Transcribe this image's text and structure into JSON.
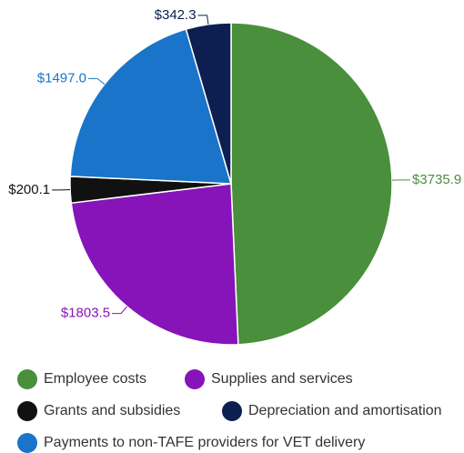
{
  "chart_data": {
    "type": "pie",
    "categories": [
      "Employee costs",
      "Supplies and services",
      "Grants and subsidies",
      "Payments to non-TAFE providers for VET delivery",
      "Depreciation and amortisation"
    ],
    "values": [
      3735.9,
      1803.5,
      200.1,
      1497.0,
      342.3
    ],
    "value_labels": [
      "$3735.9",
      "$1803.5",
      "$200.1",
      "$1497.0",
      "$342.3"
    ],
    "colors": [
      "#4a8f3c",
      "#8614b8",
      "#111111",
      "#1a74c9",
      "#0c1f50"
    ]
  }
}
